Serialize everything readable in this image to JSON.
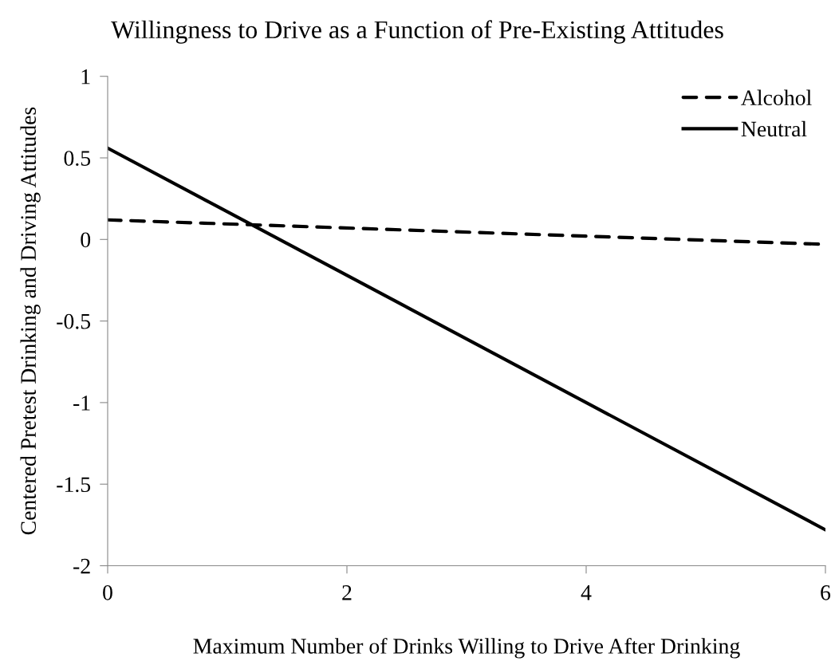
{
  "chart_data": {
    "type": "line",
    "title": "Willingness to Drive as a Function of Pre-Existing Attitudes",
    "xlabel": "Maximum Number of Drinks Willing to Drive After Drinking",
    "ylabel": "Centered Pretest Drinking and Driving Attitudes",
    "x": [
      0,
      6
    ],
    "series": [
      {
        "name": "Alcohol",
        "color": "#000000",
        "values": [
          0.12,
          -0.03
        ],
        "line_style": "dashed"
      },
      {
        "name": "Neutral",
        "color": "#000000",
        "values": [
          0.56,
          -1.78
        ],
        "line_style": "solid"
      }
    ],
    "xlim": [
      0,
      6
    ],
    "xticks": [
      0,
      2,
      4,
      6
    ],
    "ylim": [
      -2,
      1
    ],
    "yticks": [
      -2,
      -1.5,
      -1,
      -0.5,
      0,
      0.5,
      1
    ],
    "grid": false,
    "legend": "top right",
    "marker": "none"
  }
}
